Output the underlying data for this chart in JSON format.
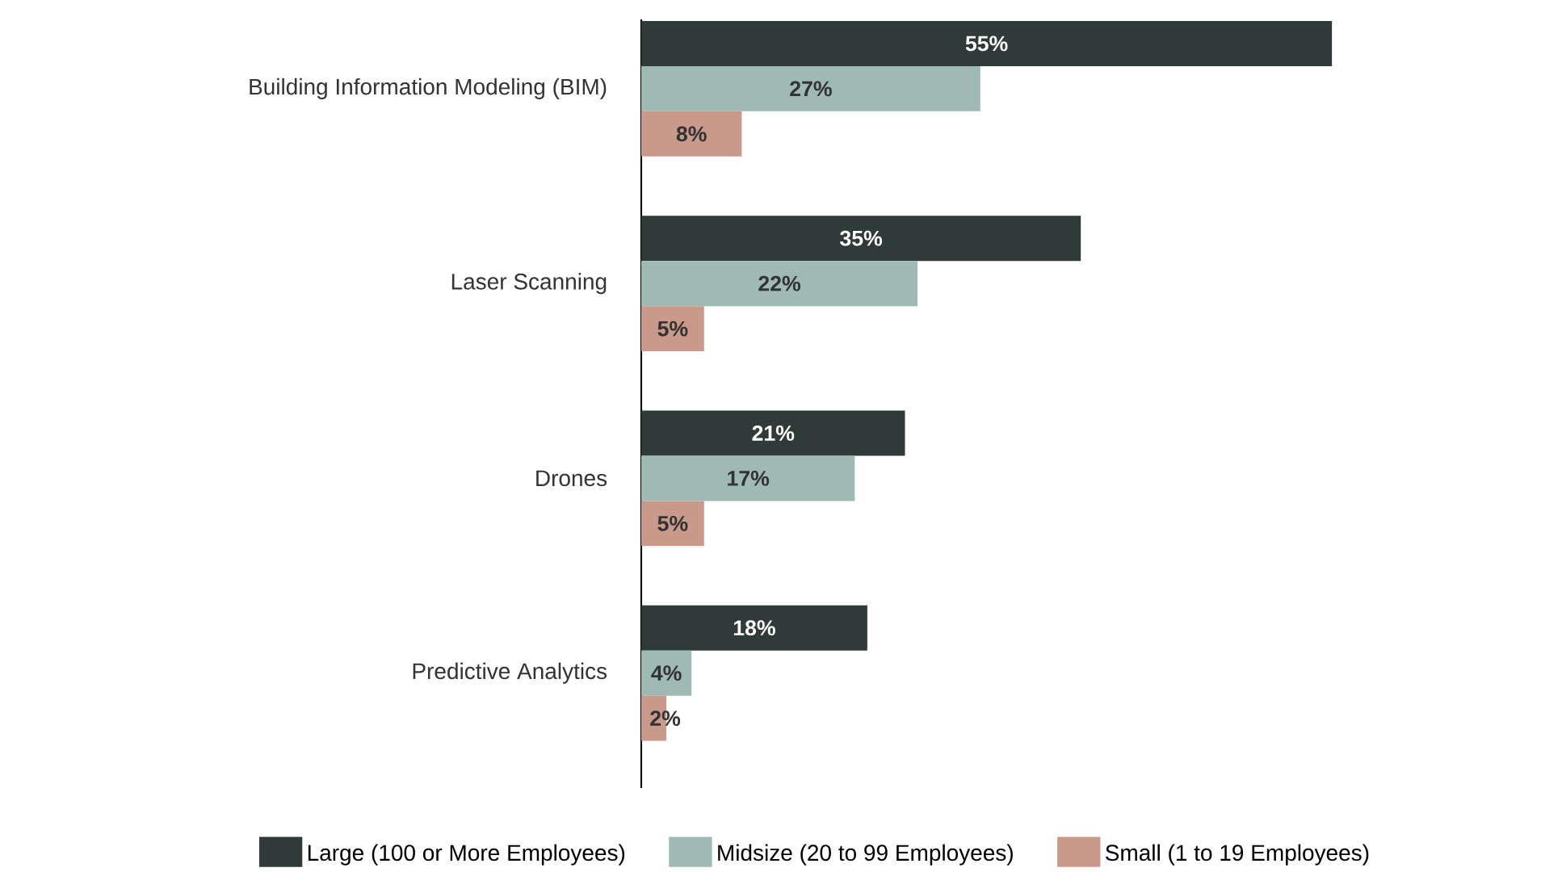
{
  "chart_data": {
    "type": "bar",
    "orientation": "horizontal",
    "data_labels": true,
    "legend": "bottom",
    "categories": [
      "Building Information Modeling (BIM)",
      "Laser Scanning",
      "Drones",
      "Predictive Analytics"
    ],
    "series": [
      {
        "name": "Large (100 or More Employees)",
        "color": "#2f3b38",
        "values": [
          55,
          35,
          21,
          18
        ],
        "value_labels": [
          "55%",
          "35%",
          "21%",
          "18%"
        ]
      },
      {
        "name": "Midsize (20 to 99 Employees)",
        "color": "#9fbab5",
        "values": [
          27,
          22,
          17,
          4
        ],
        "value_labels": [
          "27%",
          "22%",
          "17%",
          "4%"
        ]
      },
      {
        "name": "Small (1 to 19 Employees)",
        "color": "#c9998b",
        "values": [
          8,
          5,
          5,
          2
        ],
        "value_labels": [
          "8%",
          "5%",
          "5%",
          "2%"
        ]
      }
    ]
  }
}
